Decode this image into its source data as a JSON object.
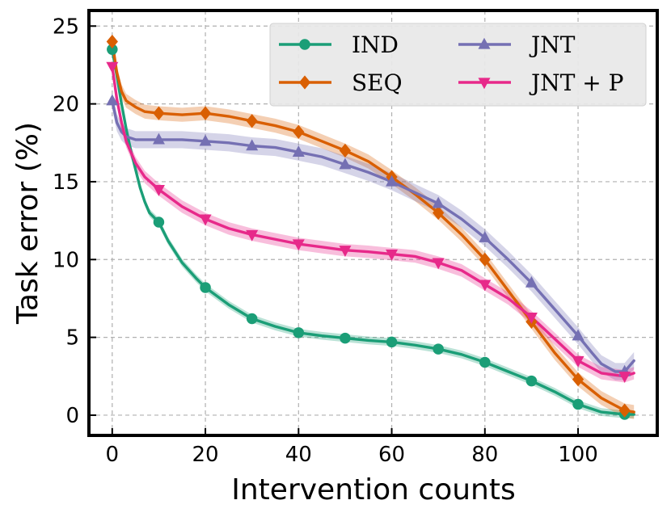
{
  "chart_data": {
    "type": "line",
    "title": "",
    "xlabel": "Intervention counts",
    "ylabel": "Task error (%)",
    "xlim": [
      -5,
      117
    ],
    "ylim": [
      -1.3,
      26
    ],
    "xticks": [
      0,
      20,
      40,
      60,
      80,
      100
    ],
    "yticks": [
      0,
      5,
      10,
      15,
      20,
      25
    ],
    "grid": true,
    "legend_position": "top-right",
    "series": [
      {
        "name": "IND",
        "color": "#1b9e77",
        "marker": "circle",
        "x": [
          0,
          1,
          2,
          3,
          4,
          5,
          6,
          7,
          8,
          10,
          12,
          15,
          18,
          20,
          25,
          30,
          35,
          40,
          45,
          50,
          55,
          60,
          65,
          70,
          75,
          80,
          85,
          90,
          95,
          100,
          105,
          110,
          112
        ],
        "y": [
          23.5,
          21.8,
          20.0,
          18.4,
          17.0,
          15.8,
          14.6,
          13.7,
          13.0,
          12.4,
          11.2,
          9.8,
          8.8,
          8.2,
          7.1,
          6.2,
          5.7,
          5.3,
          5.1,
          4.95,
          4.8,
          4.7,
          4.5,
          4.25,
          3.9,
          3.4,
          2.8,
          2.2,
          1.5,
          0.7,
          0.2,
          0.05,
          0.05
        ],
        "band": 0.25,
        "marker_x": [
          0,
          10,
          20,
          30,
          40,
          50,
          60,
          70,
          80,
          90,
          100,
          110
        ]
      },
      {
        "name": "SEQ",
        "color": "#d95f02",
        "marker": "diamond",
        "x": [
          0,
          1,
          2,
          3,
          5,
          7,
          10,
          15,
          20,
          25,
          30,
          35,
          40,
          45,
          50,
          55,
          60,
          65,
          70,
          75,
          80,
          85,
          90,
          95,
          100,
          105,
          110,
          112
        ],
        "y": [
          24.0,
          22.0,
          20.8,
          20.2,
          19.8,
          19.5,
          19.4,
          19.3,
          19.4,
          19.2,
          18.9,
          18.6,
          18.2,
          17.6,
          17.0,
          16.3,
          15.3,
          14.2,
          13.0,
          11.6,
          10.0,
          8.0,
          6.0,
          4.0,
          2.3,
          1.1,
          0.3,
          0.2
        ],
        "band": 0.45,
        "marker_x": [
          0,
          10,
          20,
          30,
          40,
          50,
          60,
          70,
          80,
          90,
          100,
          110
        ]
      },
      {
        "name": "JNT",
        "color": "#7570b3",
        "marker": "triangle-up",
        "x": [
          0,
          1,
          2,
          3,
          5,
          7,
          10,
          15,
          20,
          25,
          30,
          35,
          40,
          45,
          50,
          55,
          60,
          65,
          70,
          75,
          80,
          85,
          90,
          95,
          100,
          103,
          105,
          108,
          110,
          112
        ],
        "y": [
          20.2,
          18.8,
          18.2,
          17.9,
          17.7,
          17.7,
          17.7,
          17.7,
          17.6,
          17.5,
          17.3,
          17.2,
          16.9,
          16.6,
          16.1,
          15.6,
          15.0,
          14.3,
          13.6,
          12.6,
          11.4,
          10.0,
          8.5,
          6.8,
          5.1,
          4.0,
          3.3,
          2.8,
          2.8,
          3.5
        ],
        "band": 0.55,
        "marker_x": [
          0,
          10,
          20,
          30,
          40,
          50,
          60,
          70,
          80,
          90,
          100,
          110
        ]
      },
      {
        "name": "JNT + P",
        "color": "#e7298a",
        "marker": "triangle-down",
        "x": [
          0,
          1,
          2,
          3,
          5,
          7,
          10,
          15,
          20,
          25,
          30,
          35,
          40,
          45,
          50,
          55,
          60,
          65,
          70,
          75,
          80,
          85,
          90,
          95,
          100,
          105,
          110,
          112
        ],
        "y": [
          22.4,
          20.3,
          18.8,
          17.6,
          16.2,
          15.3,
          14.5,
          13.4,
          12.6,
          12.0,
          11.6,
          11.3,
          11.0,
          10.8,
          10.6,
          10.5,
          10.35,
          10.2,
          9.8,
          9.3,
          8.4,
          7.5,
          6.3,
          4.9,
          3.5,
          2.7,
          2.5,
          2.7
        ],
        "band": 0.4,
        "marker_x": [
          0,
          10,
          20,
          30,
          40,
          50,
          60,
          70,
          80,
          90,
          100,
          110
        ]
      }
    ]
  }
}
